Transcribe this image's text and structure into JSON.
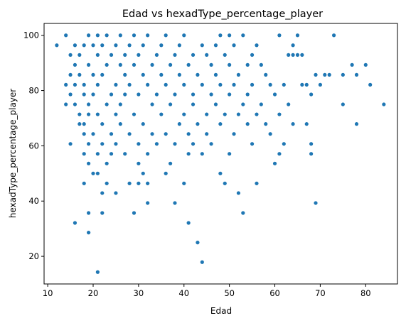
{
  "chart_data": {
    "type": "scatter",
    "title": "Edad vs hexadType_percentage_player",
    "xlabel": "Edad",
    "ylabel": "hexadType_percentage_player",
    "xlim": [
      9.2,
      87.0
    ],
    "ylim": [
      10.0,
      104.3
    ],
    "xticks": [
      10,
      20,
      30,
      40,
      50,
      60,
      70,
      80
    ],
    "yticks": [
      20,
      40,
      60,
      80,
      100
    ],
    "grid": false,
    "legend": "none",
    "color": "#1f77b4",
    "points": [
      [
        12,
        96.4
      ],
      [
        14,
        100
      ],
      [
        14,
        82.1
      ],
      [
        14,
        75
      ],
      [
        15,
        60.7
      ],
      [
        15,
        85.7
      ],
      [
        15,
        92.9
      ],
      [
        15,
        78.6
      ],
      [
        16,
        96.4
      ],
      [
        16,
        89.3
      ],
      [
        16,
        82.1
      ],
      [
        16,
        75
      ],
      [
        16,
        32.1
      ],
      [
        17,
        71.4
      ],
      [
        17,
        67.9
      ],
      [
        17,
        92.9
      ],
      [
        17,
        85.7
      ],
      [
        18,
        96.4
      ],
      [
        18,
        82.1
      ],
      [
        18,
        67.9
      ],
      [
        18,
        46.4
      ],
      [
        18,
        64.3
      ],
      [
        18,
        78.6
      ],
      [
        18,
        57.1
      ],
      [
        19,
        100
      ],
      [
        19,
        89.3
      ],
      [
        19,
        75
      ],
      [
        19,
        53.6
      ],
      [
        19,
        35.7
      ],
      [
        19,
        28.6
      ],
      [
        19,
        60.7
      ],
      [
        19,
        71.4
      ],
      [
        20,
        96.4
      ],
      [
        20,
        85.7
      ],
      [
        20,
        64.3
      ],
      [
        20,
        50
      ],
      [
        20,
        78.6
      ],
      [
        21,
        100
      ],
      [
        21,
        92.9
      ],
      [
        21,
        82.1
      ],
      [
        21,
        57.1
      ],
      [
        21,
        14.3
      ],
      [
        21,
        50
      ],
      [
        21,
        71.4
      ],
      [
        22,
        96.4
      ],
      [
        22,
        67.9
      ],
      [
        22,
        42.9
      ],
      [
        22,
        35.7
      ],
      [
        22,
        60.7
      ],
      [
        22,
        85.7
      ],
      [
        23,
        100
      ],
      [
        23,
        89.3
      ],
      [
        23,
        75
      ],
      [
        23,
        46.4
      ],
      [
        23,
        53.6
      ],
      [
        24,
        92.9
      ],
      [
        24,
        78.6
      ],
      [
        24,
        64.3
      ],
      [
        24,
        57.1
      ],
      [
        25,
        96.4
      ],
      [
        25,
        82.1
      ],
      [
        25,
        60.7
      ],
      [
        25,
        42.9
      ],
      [
        25,
        71.4
      ],
      [
        26,
        100
      ],
      [
        26,
        89.3
      ],
      [
        26,
        67.9
      ],
      [
        26,
        75
      ],
      [
        27,
        92.9
      ],
      [
        27,
        78.6
      ],
      [
        27,
        57.1
      ],
      [
        27,
        85.7
      ],
      [
        28,
        96.4
      ],
      [
        28,
        82.1
      ],
      [
        28,
        46.4
      ],
      [
        28,
        64.3
      ],
      [
        29,
        100
      ],
      [
        29,
        89.3
      ],
      [
        29,
        35.7
      ],
      [
        29,
        71.4
      ],
      [
        30,
        92.9
      ],
      [
        30,
        78.6
      ],
      [
        30,
        53.6
      ],
      [
        30,
        46.4
      ],
      [
        30,
        60.7
      ],
      [
        31,
        96.4
      ],
      [
        31,
        85.7
      ],
      [
        31,
        50
      ],
      [
        31,
        67.9
      ],
      [
        32,
        100
      ],
      [
        32,
        82.1
      ],
      [
        32,
        39.3
      ],
      [
        32,
        46.4
      ],
      [
        32,
        57.1
      ],
      [
        33,
        89.3
      ],
      [
        33,
        75
      ],
      [
        33,
        64.3
      ],
      [
        34,
        92.9
      ],
      [
        34,
        78.6
      ],
      [
        34,
        60.7
      ],
      [
        35,
        96.4
      ],
      [
        35,
        85.7
      ],
      [
        35,
        71.4
      ],
      [
        36,
        100
      ],
      [
        36,
        82.1
      ],
      [
        36,
        50
      ],
      [
        36,
        64.3
      ],
      [
        37,
        89.3
      ],
      [
        37,
        75
      ],
      [
        37,
        53.6
      ],
      [
        38,
        92.9
      ],
      [
        38,
        78.6
      ],
      [
        38,
        39.3
      ],
      [
        38,
        60.7
      ],
      [
        39,
        96.4
      ],
      [
        39,
        85.7
      ],
      [
        39,
        67.9
      ],
      [
        40,
        100
      ],
      [
        40,
        82.1
      ],
      [
        40,
        71.4
      ],
      [
        40,
        46.4
      ],
      [
        41,
        89.3
      ],
      [
        41,
        64.3
      ],
      [
        41,
        32.1
      ],
      [
        41,
        57.1
      ],
      [
        42,
        92.9
      ],
      [
        42,
        78.6
      ],
      [
        42,
        75
      ],
      [
        42,
        60.7
      ],
      [
        43,
        85.7
      ],
      [
        43,
        67.9
      ],
      [
        43,
        25
      ],
      [
        44,
        96.4
      ],
      [
        44,
        82.1
      ],
      [
        44,
        17.9
      ],
      [
        44,
        57.1
      ],
      [
        45,
        92.9
      ],
      [
        45,
        71.4
      ],
      [
        45,
        64.3
      ],
      [
        46,
        89.3
      ],
      [
        46,
        78.6
      ],
      [
        46,
        60.7
      ],
      [
        47,
        96.4
      ],
      [
        47,
        85.7
      ],
      [
        47,
        75
      ],
      [
        48,
        100
      ],
      [
        48,
        82.1
      ],
      [
        48,
        67.9
      ],
      [
        48,
        50
      ],
      [
        49,
        92.9
      ],
      [
        49,
        71.4
      ],
      [
        49,
        46.4
      ],
      [
        50,
        100
      ],
      [
        50,
        89.3
      ],
      [
        50,
        78.6
      ],
      [
        50,
        57.1
      ],
      [
        51,
        96.4
      ],
      [
        51,
        82.1
      ],
      [
        51,
        64.3
      ],
      [
        52,
        85.7
      ],
      [
        52,
        71.4
      ],
      [
        52,
        42.9
      ],
      [
        53,
        100
      ],
      [
        53,
        75
      ],
      [
        53,
        35.7
      ],
      [
        54,
        89.3
      ],
      [
        54,
        78.6
      ],
      [
        54,
        67.9
      ],
      [
        55,
        92.9
      ],
      [
        55,
        82.1
      ],
      [
        55,
        60.7
      ],
      [
        56,
        96.4
      ],
      [
        56,
        71.4
      ],
      [
        56,
        46.4
      ],
      [
        57,
        89.3
      ],
      [
        57,
        75
      ],
      [
        58,
        85.7
      ],
      [
        58,
        67.9
      ],
      [
        59,
        82.1
      ],
      [
        59,
        64.3
      ],
      [
        60,
        78.6
      ],
      [
        60,
        53.6
      ],
      [
        61,
        100
      ],
      [
        61,
        71.4
      ],
      [
        61,
        57.1
      ],
      [
        62,
        82.1
      ],
      [
        62,
        60.7
      ],
      [
        63,
        92.9
      ],
      [
        63,
        75
      ],
      [
        64,
        96.4
      ],
      [
        64,
        92.9
      ],
      [
        64,
        67.9
      ],
      [
        65,
        100
      ],
      [
        65,
        92.9
      ],
      [
        66,
        82.1
      ],
      [
        66,
        92.9
      ],
      [
        67,
        82.1
      ],
      [
        67,
        67.9
      ],
      [
        68,
        78.6
      ],
      [
        68,
        60.7
      ],
      [
        68,
        57.1
      ],
      [
        69,
        85.7
      ],
      [
        69,
        39.3
      ],
      [
        70,
        82.1
      ],
      [
        71,
        85.7
      ],
      [
        72,
        85.7
      ],
      [
        73,
        100
      ],
      [
        75,
        85.7
      ],
      [
        75,
        75
      ],
      [
        77,
        89.3
      ],
      [
        78,
        85.7
      ],
      [
        78,
        67.9
      ],
      [
        80,
        89.3
      ],
      [
        81,
        82.1
      ],
      [
        84,
        75
      ]
    ]
  }
}
